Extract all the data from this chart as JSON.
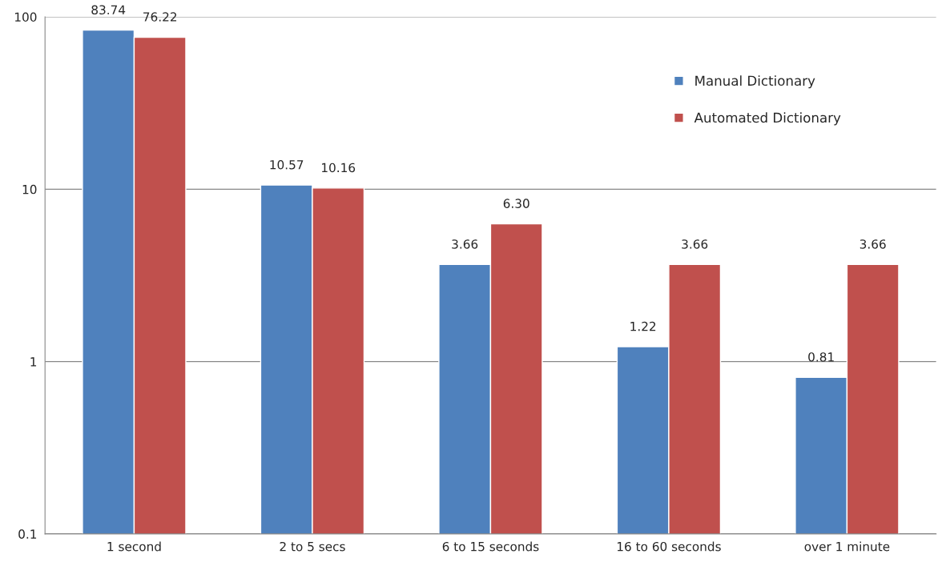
{
  "chart_data": {
    "type": "bar",
    "categories": [
      "1 second",
      "2 to 5 secs",
      "6 to 15 seconds",
      "16 to 60 seconds",
      "over 1 minute"
    ],
    "series": [
      {
        "name": "Manual Dictionary",
        "color": "#4f81bd",
        "values": [
          83.74,
          10.57,
          3.66,
          1.22,
          0.81
        ]
      },
      {
        "name": "Automated Dictionary",
        "color": "#c0504d",
        "values": [
          76.22,
          10.16,
          6.3,
          3.66,
          3.66
        ]
      }
    ],
    "value_labels": [
      [
        "83.74",
        "10.57",
        "3.66",
        "1.22",
        "0.81"
      ],
      [
        "76.22",
        "10.16",
        "6.30",
        "3.66",
        "3.66"
      ]
    ],
    "log": "y",
    "ylim": [
      0.1,
      100
    ],
    "yticks": [
      0.1,
      1,
      10,
      100
    ],
    "grid": "y",
    "legend": "top right"
  }
}
